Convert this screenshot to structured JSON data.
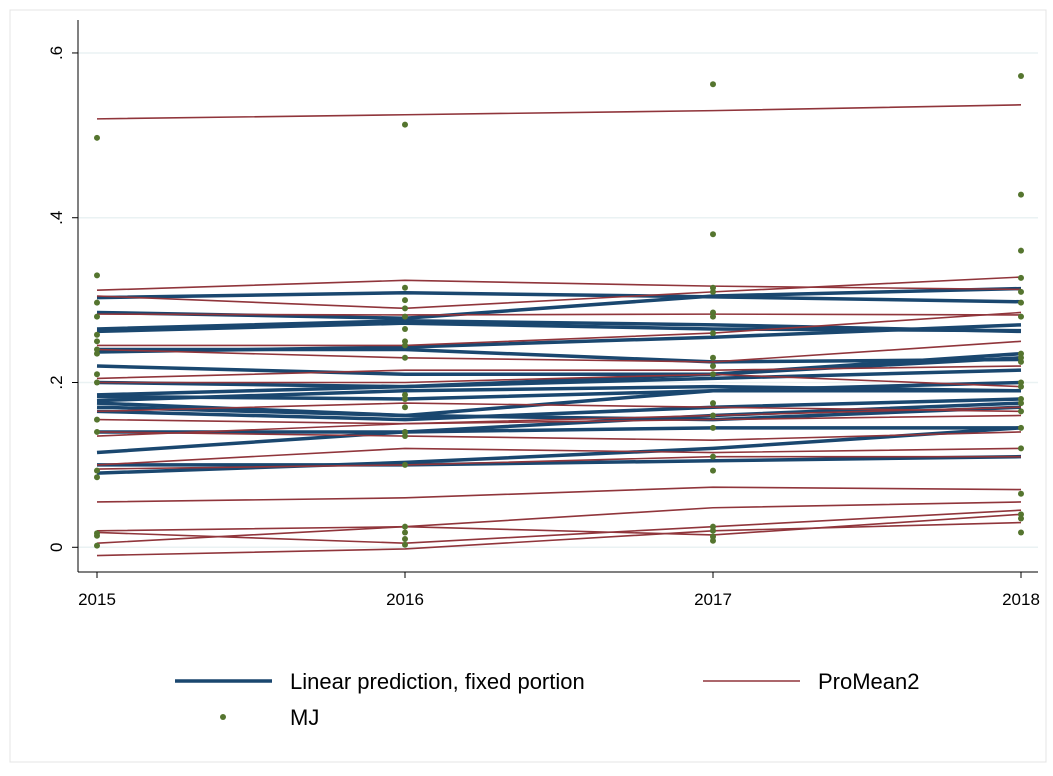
{
  "chart_data": {
    "type": "line",
    "x": [
      2015,
      2016,
      2017,
      2018
    ],
    "xlim": [
      2015,
      2018
    ],
    "xticks": [
      2015,
      2016,
      2017,
      2018
    ],
    "ylim": [
      -0.03,
      0.64
    ],
    "yticks": [
      0,
      {
        "value": 0.2,
        "label": ".2"
      },
      {
        "value": 0.4,
        "label": ".4"
      },
      {
        "value": 0.6,
        "label": ".6"
      }
    ],
    "grid": true,
    "legend": "bottom",
    "series": [
      {
        "name": "Linear prediction, fixed portion",
        "color": "#1a476f",
        "lines": [
          [
            0.303,
            0.309,
            0.304,
            0.298
          ],
          [
            0.285,
            0.278,
            0.305,
            0.314
          ],
          [
            0.265,
            0.275,
            0.27,
            0.262
          ],
          [
            0.262,
            0.272,
            0.265,
            0.263
          ],
          [
            0.237,
            0.243,
            0.255,
            0.27
          ],
          [
            0.24,
            0.24,
            0.225,
            0.228
          ],
          [
            0.22,
            0.21,
            0.21,
            0.23
          ],
          [
            0.2,
            0.195,
            0.205,
            0.215
          ],
          [
            0.185,
            0.195,
            0.21,
            0.235
          ],
          [
            0.183,
            0.18,
            0.19,
            0.19
          ],
          [
            0.178,
            0.19,
            0.195,
            0.19
          ],
          [
            0.175,
            0.16,
            0.155,
            0.17
          ],
          [
            0.17,
            0.16,
            0.19,
            0.2
          ],
          [
            0.165,
            0.155,
            0.17,
            0.18
          ],
          [
            0.14,
            0.14,
            0.16,
            0.175
          ],
          [
            0.115,
            0.14,
            0.145,
            0.145
          ],
          [
            0.1,
            0.1,
            0.105,
            0.11
          ],
          [
            0.09,
            0.103,
            0.12,
            0.145
          ]
        ]
      },
      {
        "name": "ProMean2",
        "color": "#90353b",
        "lines": [
          [
            0.52,
            0.525,
            0.53,
            0.537
          ],
          [
            0.312,
            0.324,
            0.317,
            0.313
          ],
          [
            0.305,
            0.29,
            0.31,
            0.328
          ],
          [
            0.283,
            0.282,
            0.283,
            0.282
          ],
          [
            0.245,
            0.245,
            0.26,
            0.285
          ],
          [
            0.24,
            0.23,
            0.225,
            0.25
          ],
          [
            0.205,
            0.215,
            0.215,
            0.22
          ],
          [
            0.2,
            0.2,
            0.21,
            0.195
          ],
          [
            0.165,
            0.175,
            0.17,
            0.165
          ],
          [
            0.155,
            0.15,
            0.155,
            0.16
          ],
          [
            0.14,
            0.135,
            0.13,
            0.14
          ],
          [
            0.135,
            0.15,
            0.16,
            0.17
          ],
          [
            0.1,
            0.12,
            0.115,
            0.12
          ],
          [
            0.095,
            0.1,
            0.11,
            0.11
          ],
          [
            0.055,
            0.06,
            0.073,
            0.07
          ],
          [
            0.02,
            0.025,
            0.015,
            0.04
          ],
          [
            0.005,
            0.025,
            0.048,
            0.055
          ],
          [
            -0.01,
            -0.002,
            0.02,
            0.03
          ],
          [
            0.018,
            0.005,
            0.025,
            0.045
          ]
        ]
      },
      {
        "name": "MJ",
        "color": "#55752f",
        "values_by_x": [
          [
            0.497,
            0.33,
            0.297,
            0.28,
            0.258,
            0.25,
            0.24,
            0.235,
            0.21,
            0.2,
            0.155,
            0.14,
            0.093,
            0.085,
            0.017,
            0.014,
            0.002
          ],
          [
            0.513,
            0.315,
            0.3,
            0.29,
            0.28,
            0.265,
            0.25,
            0.245,
            0.23,
            0.185,
            0.18,
            0.17,
            0.14,
            0.135,
            0.1,
            0.025,
            0.018,
            0.01,
            0.003
          ],
          [
            0.562,
            0.38,
            0.315,
            0.31,
            0.285,
            0.28,
            0.26,
            0.23,
            0.22,
            0.21,
            0.175,
            0.16,
            0.145,
            0.11,
            0.093,
            0.025,
            0.02,
            0.013,
            0.008
          ],
          [
            0.572,
            0.428,
            0.36,
            0.327,
            0.31,
            0.297,
            0.28,
            0.235,
            0.23,
            0.225,
            0.2,
            0.195,
            0.18,
            0.175,
            0.165,
            0.145,
            0.12,
            0.065,
            0.04,
            0.035,
            0.018
          ]
        ]
      }
    ]
  }
}
